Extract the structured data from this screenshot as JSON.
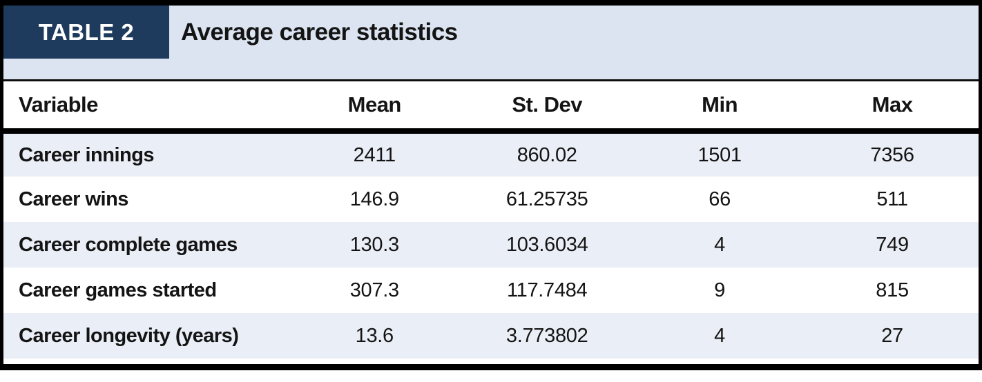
{
  "badge": {
    "label": "TABLE 2"
  },
  "title": "Average career statistics",
  "colors": {
    "badge_navy": "#1e3a5c",
    "band_blue": "#dbe4f0",
    "zebra_row": "#eaeef6",
    "border_black": "#000000"
  },
  "table": {
    "columns": [
      "Variable",
      "Mean",
      "St. Dev",
      "Min",
      "Max"
    ],
    "rows": [
      {
        "variable": "Career innings",
        "mean": "2411",
        "st_dev": "860.02",
        "min": "1501",
        "max": "7356"
      },
      {
        "variable": "Career wins",
        "mean": "146.9",
        "st_dev": "61.25735",
        "min": "66",
        "max": "511"
      },
      {
        "variable": "Career complete games",
        "mean": "130.3",
        "st_dev": "103.6034",
        "min": "4",
        "max": "749"
      },
      {
        "variable": "Career games started",
        "mean": "307.3",
        "st_dev": "117.7484",
        "min": "9",
        "max": "815"
      },
      {
        "variable": "Career longevity (years)",
        "mean": "13.6",
        "st_dev": "3.773802",
        "min": "4",
        "max": "27"
      }
    ]
  }
}
